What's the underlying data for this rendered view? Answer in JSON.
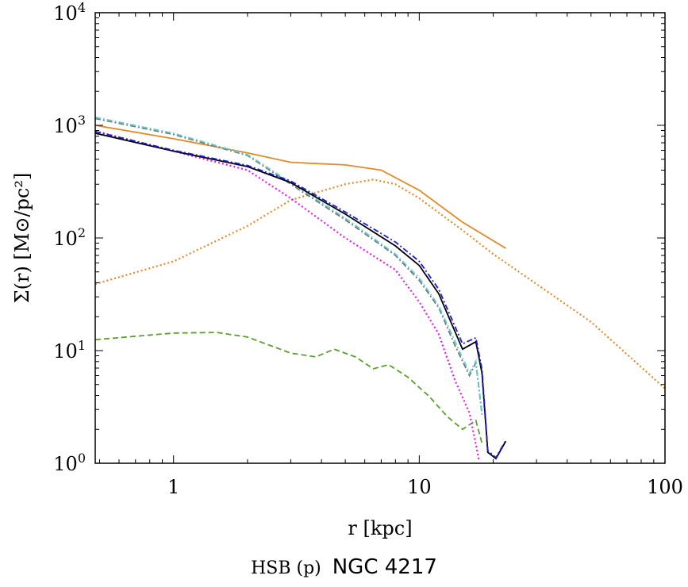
{
  "chart_data": {
    "type": "line",
    "xlabel": "r [kpc]",
    "ylabel": "Σ(r) [M⊙/pc²]",
    "x_scale": "log",
    "y_scale": "log",
    "xlim": [
      0.48,
      100
    ],
    "ylim": [
      1,
      10000
    ],
    "x_ticks": [
      {
        "v": 1,
        "label": "1"
      },
      {
        "v": 10,
        "label": "10"
      },
      {
        "v": 100,
        "label": "100"
      }
    ],
    "y_ticks": [
      {
        "v": 1,
        "label": "10",
        "exp": "0"
      },
      {
        "v": 10,
        "label": "10",
        "exp": "1"
      },
      {
        "v": 100,
        "label": "10",
        "exp": "2"
      },
      {
        "v": 1000,
        "label": "10",
        "exp": "3"
      },
      {
        "v": 10000,
        "label": "10",
        "exp": "4"
      }
    ],
    "grid": false,
    "series": [
      {
        "color": "#e08a2a",
        "style": "dotted",
        "x": [
          0.48,
          1,
          2,
          3,
          5,
          6.5,
          8,
          10,
          15,
          20,
          50,
          100
        ],
        "y": [
          39,
          62,
          128,
          217,
          300,
          330,
          300,
          225,
          117,
          72,
          18,
          4.6
        ]
      },
      {
        "color": "#e08a2a",
        "style": "solid",
        "x": [
          0.48,
          1,
          2,
          3,
          5,
          7,
          10,
          15,
          22.5
        ],
        "y": [
          1000,
          760,
          570,
          470,
          445,
          400,
          265,
          138,
          81
        ]
      },
      {
        "color": "#5aa02c",
        "style": "dashed",
        "x": [
          0.48,
          1,
          1.5,
          2,
          3,
          3.8,
          4.5,
          5.5,
          6.5,
          7.5,
          9,
          11,
          13,
          15,
          17,
          18
        ],
        "y": [
          12.5,
          14.3,
          14.5,
          13.2,
          9.5,
          8.8,
          10.3,
          8.8,
          6.9,
          7.5,
          5.8,
          3.9,
          2.6,
          2.0,
          2.4,
          1.5
        ]
      },
      {
        "color": "#e020e0",
        "style": "dotted",
        "x": [
          0.48,
          1,
          2,
          3,
          5,
          8,
          10,
          12,
          14,
          16,
          17.5
        ],
        "y": [
          890,
          590,
          400,
          225,
          100,
          52,
          27,
          14,
          5.4,
          2.8,
          1.07
        ]
      },
      {
        "color": "#777777",
        "style": "dashdot",
        "x": [
          0.48,
          1,
          2,
          3,
          5,
          8,
          10,
          12,
          14,
          16,
          17,
          18
        ],
        "y": [
          1150,
          830,
          540,
          300,
          145,
          70,
          42,
          24,
          11,
          6,
          7.8,
          2.7
        ]
      },
      {
        "color": "#5fd0d0",
        "style": "dashdot",
        "x": [
          0.48,
          1,
          2,
          3,
          5,
          8,
          10,
          12,
          14,
          16,
          17,
          18
        ],
        "y": [
          1180,
          850,
          550,
          310,
          150,
          72,
          44,
          25,
          12,
          6.3,
          8.1,
          2.8
        ]
      },
      {
        "color": "#000000",
        "style": "solid",
        "x": [
          0.48,
          1,
          2,
          3,
          5,
          8,
          10,
          12,
          15,
          17,
          18,
          19,
          20.5,
          22.5
        ],
        "y": [
          850,
          590,
          430,
          310,
          163,
          85,
          57,
          32,
          10.3,
          12,
          6.3,
          1.25,
          1.1,
          1.57
        ]
      },
      {
        "color": "#1a1ae0",
        "style": "dashdot",
        "x": [
          0.48,
          1,
          2,
          3,
          5,
          8,
          10,
          12,
          15,
          17,
          18,
          19,
          20.5,
          22.5
        ],
        "y": [
          880,
          600,
          440,
          320,
          170,
          92,
          62,
          35,
          11.5,
          13,
          6.8,
          1.3,
          1.12,
          1.6
        ]
      }
    ]
  },
  "caption": {
    "sample": "HSB (p)",
    "galaxy": "NGC 4217"
  }
}
